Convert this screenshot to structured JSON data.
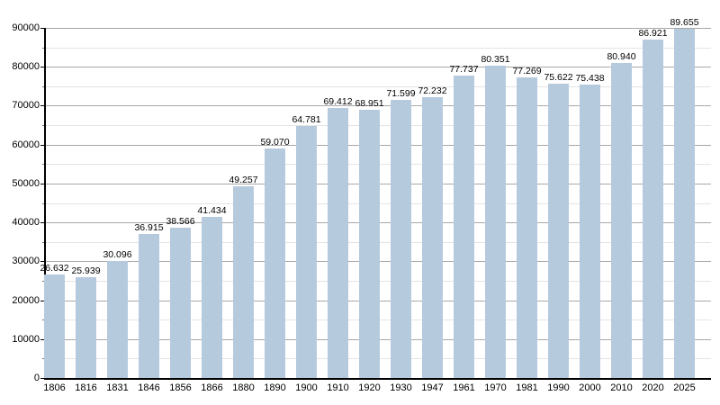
{
  "chart_data": {
    "type": "bar",
    "title": "",
    "xlabel": "",
    "ylabel": "",
    "categories": [
      "1806",
      "1816",
      "1831",
      "1846",
      "1856",
      "1866",
      "1880",
      "1890",
      "1900",
      "1910",
      "1920",
      "1930",
      "1947",
      "1961",
      "1970",
      "1981",
      "1990",
      "2000",
      "2010",
      "2020",
      "2025"
    ],
    "values": [
      26632,
      25939,
      30096,
      36915,
      38566,
      41434,
      49257,
      59070,
      64781,
      69412,
      68951,
      71599,
      72232,
      77737,
      80351,
      77269,
      75622,
      75438,
      80940,
      86921,
      89655
    ],
    "value_labels": [
      "26.632",
      "25.939",
      "30.096",
      "36.915",
      "38.566",
      "41.434",
      "49.257",
      "59.070",
      "64.781",
      "69.412",
      "68.951",
      "71.599",
      "72.232",
      "77.737",
      "80.351",
      "77.269",
      "75.622",
      "75.438",
      "80.940",
      "86.921",
      "89.655"
    ],
    "ylim": [
      0,
      90000
    ],
    "ytick_step": 10000,
    "ytick_minor_step": 5000,
    "ytick_labels": [
      "0",
      "10000",
      "20000",
      "30000",
      "40000",
      "50000",
      "60000",
      "70000",
      "80000",
      "90000"
    ],
    "grid": "on",
    "legend": "none",
    "colors": {
      "bar": "#b6cade",
      "grid_major": "#a8a8a8",
      "grid_minor": "#e4e4e4",
      "axis": "#000000",
      "text": "#000000"
    }
  }
}
